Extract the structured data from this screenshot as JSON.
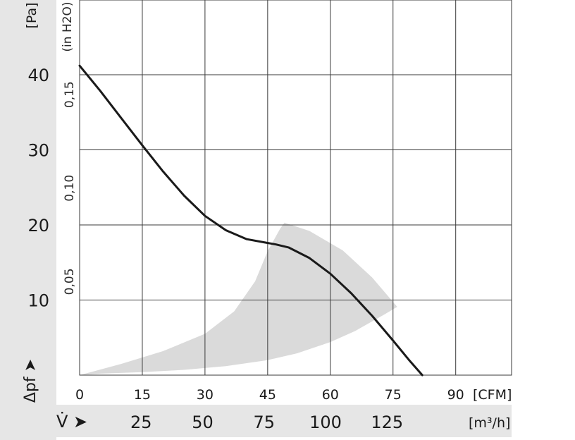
{
  "chart_data": {
    "type": "line",
    "y_unit": "[Pa]",
    "y2_unit": "(in H2O)",
    "y_label": "Δpf ➤",
    "x_unit": "[CFM]",
    "x2_label": "V̇ ➤",
    "x2_unit": "[m³/h]",
    "xlim": [
      0,
      100
    ],
    "ylim": [
      0,
      50
    ],
    "x_ticks": [
      0,
      15,
      30,
      45,
      60,
      75,
      90
    ],
    "x_tick_labels": [
      "0",
      "15",
      "30",
      "45",
      "60",
      "75",
      "90"
    ],
    "x2_ticks": [
      25,
      50,
      75,
      100,
      125
    ],
    "x2_tick_labels": [
      "25",
      "50",
      "75",
      "100",
      "125"
    ],
    "y_ticks": [
      10,
      20,
      30,
      40
    ],
    "y_tick_labels": [
      "10",
      "20",
      "30",
      "40"
    ],
    "y2_ticks": [
      0.05,
      0.1,
      0.15
    ],
    "y2_tick_labels": [
      "0,05",
      "0,10",
      "0,15"
    ],
    "grid": true,
    "series": [
      {
        "x": [
          0,
          5,
          10,
          15,
          20,
          25,
          30,
          35,
          40,
          44,
          47,
          50,
          55,
          60,
          65,
          70,
          75,
          79,
          82
        ],
        "y": [
          41.2,
          37.8,
          34.2,
          30.6,
          27.1,
          23.9,
          21.2,
          19.3,
          18.1,
          17.7,
          17.4,
          17.0,
          15.6,
          13.5,
          10.9,
          7.9,
          4.6,
          1.9,
          0
        ],
        "color": "#1a1a1a"
      }
    ],
    "operating_range": {
      "color": "#dadada",
      "x": [
        0,
        10,
        20,
        30,
        37,
        42,
        45,
        48,
        49,
        55,
        63,
        70,
        76,
        73,
        66,
        60,
        52,
        45,
        35,
        25,
        15,
        5,
        0
      ],
      "y": [
        0,
        1.5,
        3.2,
        5.5,
        8.5,
        12.5,
        16.5,
        19.5,
        20.3,
        19.2,
        16.6,
        13.0,
        9.1,
        8.1,
        5.9,
        4.4,
        2.9,
        2.0,
        1.2,
        0.7,
        0.4,
        0.2,
        0
      ]
    }
  }
}
